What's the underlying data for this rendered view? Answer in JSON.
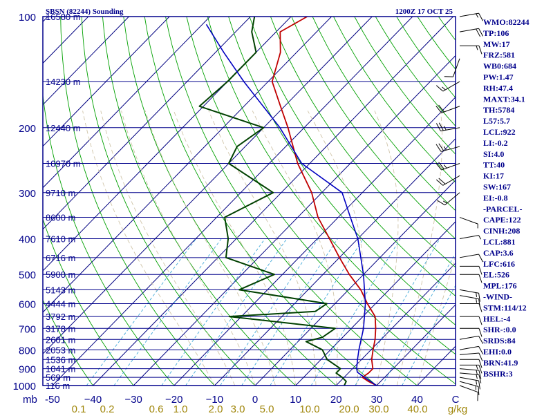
{
  "header": {
    "station": "SBSN (82244) Sounding",
    "time": "1200Z 17 OCT 25"
  },
  "indices": [
    "WMO:82244",
    "TP:106",
    "MW:17",
    "FRZ:581",
    "WB0:684",
    "PW:1.47",
    "RH:47.4",
    "MAXT:34.1",
    "TH:5784",
    "L57:5.7",
    "LCL:922",
    "LI:-0.2",
    "SI:4.0",
    "TT:40",
    "KI:17",
    "SW:167",
    "EI:-0.8",
    "-PARCEL-",
    "CAPE:122",
    "CINH:208",
    "LCL:881",
    "CAP:3.6",
    "LFC:616",
    "EL:526",
    "MPL:176",
    "-WIND-",
    "STM:114/12",
    "HEL:-4",
    "SHR-:0.0",
    "SRDS:84",
    "EHI:0.0",
    "BRN:41.9",
    "BSHR:3"
  ],
  "colors": {
    "axes": "#00008b",
    "isobar": "#00008b",
    "isotherm": "#000080",
    "dry_adiabat": "#00a000",
    "moist_adiabat": "#cfc4a8",
    "mixing_ratio": "#40a8d8",
    "temperature": "#c00000",
    "dewpoint": "#004000",
    "parcel": "#0000c0",
    "mixing_ratio_labels": "#a0860a",
    "wind_barbs": "#000000"
  },
  "chart_data": {
    "type": "skew-t log-p",
    "title": "SBSN (82244) Sounding",
    "pressure_axis": {
      "unit_label": "mb",
      "range": [
        1000,
        100
      ],
      "ticks": [
        1000,
        900,
        800,
        700,
        600,
        500,
        400,
        300,
        200,
        100
      ]
    },
    "height_labels": [
      {
        "p": 100,
        "label": "16580 m"
      },
      {
        "p": 150,
        "label": "14230 m"
      },
      {
        "p": 200,
        "label": "12440 m"
      },
      {
        "p": 250,
        "label": "10970 m"
      },
      {
        "p": 300,
        "label": "9710 m"
      },
      {
        "p": 350,
        "label": "8600 m"
      },
      {
        "p": 400,
        "label": "7610 m"
      },
      {
        "p": 450,
        "label": "6716 m"
      },
      {
        "p": 500,
        "label": "5900 m"
      },
      {
        "p": 550,
        "label": "5143 m"
      },
      {
        "p": 600,
        "label": "4444 m"
      },
      {
        "p": 650,
        "label": "3792 m"
      },
      {
        "p": 700,
        "label": "3178 m"
      },
      {
        "p": 750,
        "label": "2601 m"
      },
      {
        "p": 800,
        "label": "2053 m"
      },
      {
        "p": 850,
        "label": "1536 m"
      },
      {
        "p": 900,
        "label": "1041 m"
      },
      {
        "p": 950,
        "label": "569 m"
      },
      {
        "p": 1000,
        "label": "116 m"
      }
    ],
    "temperature_axis": {
      "unit_label": "C",
      "ticks": [
        -50,
        -40,
        -30,
        -20,
        -10,
        0,
        10,
        20,
        30,
        40
      ],
      "tick_labels": [
        "-50",
        "−40",
        "−30",
        "−20",
        "−10",
        "0",
        "10",
        "20",
        "30",
        "40"
      ]
    },
    "mixing_ratio_axis": {
      "unit_label": "g/kg",
      "values": [
        0.1,
        0.2,
        0.6,
        1.0,
        2.0,
        3.0,
        5.0,
        10.0,
        20.0,
        30.0,
        40.0
      ],
      "labels": [
        "0.1",
        "0.2",
        "0.6",
        "1.0",
        "2.0",
        "3.0",
        "5.0",
        "10.0",
        "20.0",
        "30.0",
        "40.0"
      ]
    },
    "series": [
      {
        "key": "temperature",
        "points": [
          {
            "p": 1000,
            "t": 30
          },
          {
            "p": 975,
            "t": 27
          },
          {
            "p": 950,
            "t": 24.5
          },
          {
            "p": 925,
            "t": 25
          },
          {
            "p": 900,
            "t": 25
          },
          {
            "p": 850,
            "t": 22.5
          },
          {
            "p": 800,
            "t": 20.5
          },
          {
            "p": 750,
            "t": 18.5
          },
          {
            "p": 700,
            "t": 16
          },
          {
            "p": 650,
            "t": 13
          },
          {
            "p": 600,
            "t": 8
          },
          {
            "p": 550,
            "t": 3
          },
          {
            "p": 500,
            "t": -3.5
          },
          {
            "p": 450,
            "t": -10
          },
          {
            "p": 400,
            "t": -17
          },
          {
            "p": 350,
            "t": -25
          },
          {
            "p": 300,
            "t": -32.5
          },
          {
            "p": 250,
            "t": -43
          },
          {
            "p": 200,
            "t": -54
          },
          {
            "p": 175,
            "t": -61
          },
          {
            "p": 150,
            "t": -69
          },
          {
            "p": 125,
            "t": -74
          },
          {
            "p": 110,
            "t": -79
          },
          {
            "p": 100,
            "t": -76
          }
        ]
      },
      {
        "key": "dewpoint",
        "points": [
          {
            "p": 1000,
            "t": 22
          },
          {
            "p": 975,
            "t": 21.5
          },
          {
            "p": 950,
            "t": 19.5
          },
          {
            "p": 925,
            "t": 17
          },
          {
            "p": 900,
            "t": 17
          },
          {
            "p": 850,
            "t": 11.5
          },
          {
            "p": 800,
            "t": 8
          },
          {
            "p": 760,
            "t": 2
          },
          {
            "p": 740,
            "t": 5
          },
          {
            "p": 700,
            "t": 6
          },
          {
            "p": 650,
            "t": -23
          },
          {
            "p": 630,
            "t": -3
          },
          {
            "p": 600,
            "t": -2
          },
          {
            "p": 550,
            "t": -27
          },
          {
            "p": 500,
            "t": -22
          },
          {
            "p": 450,
            "t": -38
          },
          {
            "p": 400,
            "t": -42
          },
          {
            "p": 350,
            "t": -48
          },
          {
            "p": 300,
            "t": -42
          },
          {
            "p": 250,
            "t": -60
          },
          {
            "p": 225,
            "t": -62
          },
          {
            "p": 200,
            "t": -60
          },
          {
            "p": 175,
            "t": -81
          },
          {
            "p": 150,
            "t": -80
          },
          {
            "p": 125,
            "t": -80
          },
          {
            "p": 110,
            "t": -86
          },
          {
            "p": 100,
            "t": -89
          }
        ]
      },
      {
        "key": "parcel",
        "points": [
          {
            "p": 1000,
            "t": 30
          },
          {
            "p": 950,
            "t": 25
          },
          {
            "p": 920,
            "t": 22
          },
          {
            "p": 900,
            "t": 21
          },
          {
            "p": 850,
            "t": 19
          },
          {
            "p": 800,
            "t": 17
          },
          {
            "p": 700,
            "t": 13
          },
          {
            "p": 600,
            "t": 7.5
          },
          {
            "p": 500,
            "t": 0
          },
          {
            "p": 400,
            "t": -10
          },
          {
            "p": 350,
            "t": -17
          },
          {
            "p": 300,
            "t": -25
          },
          {
            "p": 250,
            "t": -42
          },
          {
            "p": 200,
            "t": -56
          },
          {
            "p": 150,
            "t": -76
          },
          {
            "p": 125,
            "t": -88
          },
          {
            "p": 105,
            "t": -99
          }
        ]
      }
    ],
    "wind_barbs": [
      {
        "p": 1000,
        "dir": 110,
        "spd": 10
      },
      {
        "p": 975,
        "dir": 105,
        "spd": 15
      },
      {
        "p": 950,
        "dir": 100,
        "spd": 15
      },
      {
        "p": 925,
        "dir": 95,
        "spd": 15
      },
      {
        "p": 900,
        "dir": 95,
        "spd": 15
      },
      {
        "p": 880,
        "dir": 90,
        "spd": 15
      },
      {
        "p": 850,
        "dir": 90,
        "spd": 10
      },
      {
        "p": 825,
        "dir": 85,
        "spd": 10
      },
      {
        "p": 800,
        "dir": 80,
        "spd": 10
      },
      {
        "p": 750,
        "dir": 80,
        "spd": 10
      },
      {
        "p": 700,
        "dir": 90,
        "spd": 10
      },
      {
        "p": 650,
        "dir": 90,
        "spd": 10
      },
      {
        "p": 600,
        "dir": 90,
        "spd": 10
      },
      {
        "p": 570,
        "dir": 100,
        "spd": 15
      },
      {
        "p": 550,
        "dir": 100,
        "spd": 15
      },
      {
        "p": 500,
        "dir": 90,
        "spd": 10
      },
      {
        "p": 475,
        "dir": 90,
        "spd": 10
      },
      {
        "p": 450,
        "dir": 80,
        "spd": 10
      },
      {
        "p": 400,
        "dir": 80,
        "spd": 5
      },
      {
        "p": 350,
        "dir": 110,
        "spd": 5
      },
      {
        "p": 300,
        "dir": 230,
        "spd": 15
      },
      {
        "p": 270,
        "dir": 240,
        "spd": 20
      },
      {
        "p": 250,
        "dir": 250,
        "spd": 25
      },
      {
        "p": 225,
        "dir": 255,
        "spd": 25
      },
      {
        "p": 200,
        "dir": 260,
        "spd": 25
      },
      {
        "p": 175,
        "dir": 250,
        "spd": 20
      },
      {
        "p": 150,
        "dir": 240,
        "spd": 15
      },
      {
        "p": 130,
        "dir": 200,
        "spd": 10
      },
      {
        "p": 120,
        "dir": 90,
        "spd": 15
      },
      {
        "p": 110,
        "dir": 80,
        "spd": 20
      },
      {
        "p": 100,
        "dir": 80,
        "spd": 15
      }
    ]
  }
}
